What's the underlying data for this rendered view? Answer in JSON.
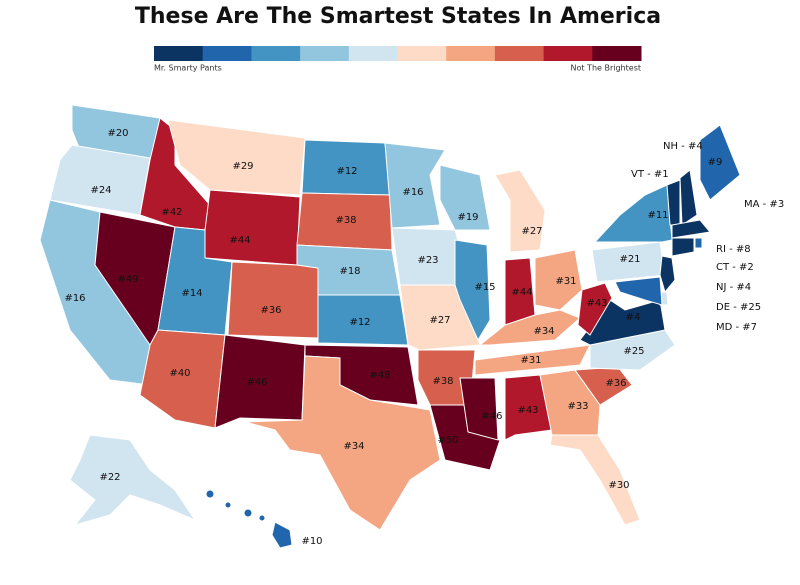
{
  "title": "These Are The Smartest States In America",
  "legend": {
    "colors": [
      "#0b3463",
      "#2166ac",
      "#4393c3",
      "#92c5de",
      "#d1e5f0",
      "#fddbc7",
      "#f4a582",
      "#d6604d",
      "#b2182b",
      "#67001f"
    ],
    "left_label": "Mr. Smarty Pants",
    "right_label": "Not The Brightest",
    "ranks_per_color": 5
  },
  "states": {
    "values": [
      20,
      24,
      16,
      42,
      49,
      29,
      44,
      14,
      40,
      36,
      46,
      12,
      38,
      18,
      12,
      48,
      34,
      16,
      23,
      27,
      38,
      50,
      19,
      15,
      27,
      44,
      31,
      34,
      31,
      46,
      43,
      33,
      30,
      36,
      25,
      4,
      43,
      21,
      11,
      9,
      22,
      10,
      1,
      4,
      3,
      8,
      2,
      4,
      25,
      7
    ],
    "value_labels": [
      "#20",
      "#24",
      "#16",
      "#42",
      "#49",
      "#29",
      "#44",
      "#14",
      "#40",
      "#36",
      "#46",
      "#12",
      "#38",
      "#18",
      "#12",
      "#48",
      "#34",
      "#16",
      "#23",
      "#27",
      "#38",
      "#50",
      "#19",
      "#15",
      "#27",
      "#44",
      "#31",
      "#34",
      "#31",
      "#46",
      "#43",
      "#33",
      "#30",
      "#36",
      "#25",
      "#4",
      "#43",
      "#21",
      "#11",
      "#9",
      "#22",
      "#10",
      "VT - #1",
      "NH - #4",
      "MA - #3",
      "RI - #8",
      "CT - #2",
      "NJ - #4",
      "DE - #25",
      "MD - #7"
    ]
  }
}
